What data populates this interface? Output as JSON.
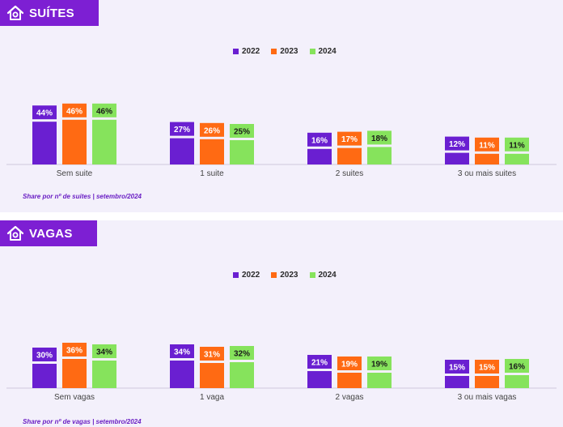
{
  "colors": {
    "y2022": "#6a1fd1",
    "y2023": "#ff6a13",
    "y2024": "#86e35c",
    "header": "#7d1fd3"
  },
  "legend": [
    "2022",
    "2023",
    "2024"
  ],
  "suites": {
    "title": "SUÍTES",
    "icon": "house-icon",
    "note": "Share por nº de suites | setembro/2024"
  },
  "vagas": {
    "title": "VAGAS",
    "icon": "house-icon",
    "note": "Share por nº de vagas | setembro/2024"
  },
  "chart_data": [
    {
      "type": "bar",
      "title": "SUÍTES",
      "categories": [
        "Sem suite",
        "1 suite",
        "2 suites",
        "3 ou mais suites"
      ],
      "series": [
        {
          "name": "2022",
          "values": [
            44,
            27,
            16,
            12
          ]
        },
        {
          "name": "2023",
          "values": [
            46,
            26,
            17,
            11
          ]
        },
        {
          "name": "2024",
          "values": [
            46,
            25,
            18,
            11
          ]
        }
      ],
      "unit": "%",
      "legend_position": "top-center",
      "grid": false
    },
    {
      "type": "bar",
      "title": "VAGAS",
      "categories": [
        "Sem vagas",
        "1 vaga",
        "2 vagas",
        "3 ou mais vagas"
      ],
      "series": [
        {
          "name": "2022",
          "values": [
            30,
            34,
            21,
            15
          ]
        },
        {
          "name": "2023",
          "values": [
            36,
            31,
            19,
            15
          ]
        },
        {
          "name": "2024",
          "values": [
            34,
            32,
            19,
            16
          ]
        }
      ],
      "unit": "%",
      "legend_position": "top-center",
      "grid": false
    }
  ]
}
